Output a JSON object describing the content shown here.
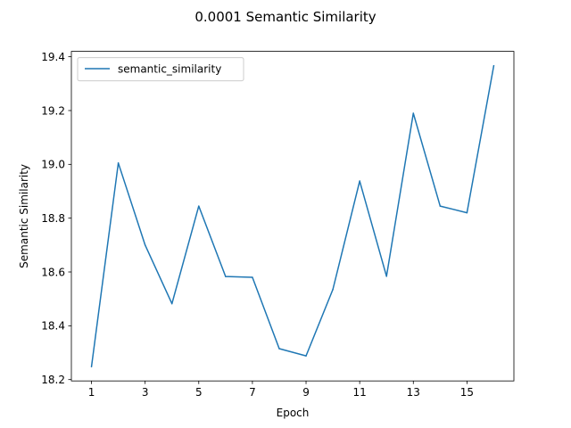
{
  "chart_data": {
    "type": "line",
    "title": "0.0001 Semantic Similarity",
    "xlabel": "Epoch",
    "ylabel": "Semantic Similarity",
    "xlim": [
      0.25,
      16.75
    ],
    "ylim": [
      18.195,
      19.42
    ],
    "xticks": [
      1,
      3,
      5,
      7,
      9,
      11,
      13,
      15
    ],
    "yticks": [
      18.2,
      18.4,
      18.6,
      18.8,
      19.0,
      19.2,
      19.4
    ],
    "ytick_labels": [
      "18.2",
      "18.4",
      "18.6",
      "18.8",
      "19.0",
      "19.2",
      "19.4"
    ],
    "grid": false,
    "legend_position": "upper left",
    "series": [
      {
        "name": "semantic_similarity",
        "color": "#1f77b4",
        "x": [
          1,
          2,
          3,
          4,
          5,
          6,
          7,
          8,
          9,
          10,
          11,
          12,
          13,
          14,
          15,
          16
        ],
        "y": [
          18.248,
          19.005,
          18.7,
          18.482,
          18.845,
          18.583,
          18.58,
          18.315,
          18.288,
          18.535,
          18.938,
          18.584,
          19.19,
          18.845,
          18.82,
          19.367
        ]
      }
    ]
  }
}
